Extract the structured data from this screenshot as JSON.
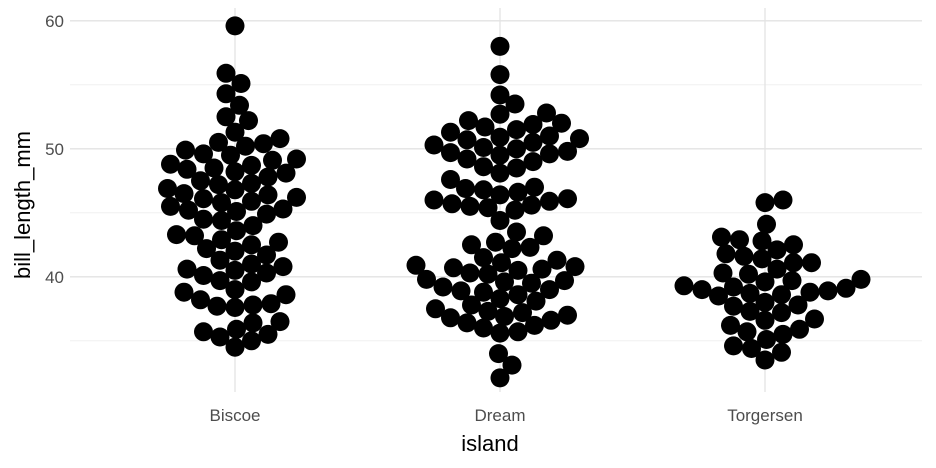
{
  "chart_data": {
    "type": "scatter",
    "style": "beeswarm",
    "title": "",
    "xlabel": "island",
    "ylabel": "bill_length_mm",
    "categories": [
      "Biscoe",
      "Dream",
      "Torgersen"
    ],
    "ylim": [
      31,
      61
    ],
    "yticks": [
      40,
      50,
      60
    ],
    "grid": true,
    "legend": "none",
    "point_color": "#000000",
    "series": [
      {
        "category": "Biscoe",
        "values": [
          59.6,
          55.9,
          55.1,
          54.3,
          53.4,
          52.5,
          52.2,
          51.3,
          50.8,
          50.5,
          50.4,
          50.2,
          49.9,
          49.6,
          49.5,
          49.2,
          49.1,
          48.8,
          48.7,
          48.5,
          48.4,
          48.2,
          48.1,
          47.8,
          47.5,
          47.3,
          47.2,
          46.9,
          46.8,
          46.5,
          46.4,
          46.2,
          46.1,
          45.9,
          45.8,
          45.5,
          45.3,
          45.2,
          45.1,
          44.9,
          44.5,
          44.4,
          44.0,
          43.6,
          43.3,
          43.2,
          42.9,
          42.7,
          42.5,
          42.2,
          42.0,
          41.7,
          41.3,
          41.0,
          40.8,
          40.6,
          40.5,
          40.3,
          40.1,
          39.7,
          39.6,
          39.0,
          38.8,
          38.6,
          38.2,
          37.9,
          37.8,
          37.7,
          37.6,
          36.5,
          36.4,
          35.9,
          35.7,
          35.5,
          35.3,
          35.0,
          34.5
        ]
      },
      {
        "category": "Dream",
        "values": [
          58.0,
          55.8,
          54.2,
          53.5,
          52.8,
          52.7,
          52.2,
          52.0,
          51.9,
          51.7,
          51.5,
          51.3,
          51.0,
          50.9,
          50.8,
          50.7,
          50.5,
          50.3,
          50.1,
          50.0,
          49.8,
          49.7,
          49.6,
          49.5,
          49.2,
          49.0,
          48.6,
          48.5,
          48.1,
          47.6,
          47.0,
          46.9,
          46.8,
          46.6,
          46.4,
          46.1,
          46.0,
          45.9,
          45.7,
          45.6,
          45.5,
          45.4,
          45.2,
          44.4,
          43.5,
          43.2,
          42.7,
          42.5,
          42.3,
          42.2,
          41.5,
          41.3,
          41.1,
          40.9,
          40.8,
          40.7,
          40.6,
          40.5,
          40.3,
          40.2,
          39.8,
          39.7,
          39.6,
          39.5,
          39.2,
          39.0,
          38.9,
          38.8,
          38.6,
          38.3,
          38.1,
          37.8,
          37.5,
          37.3,
          37.2,
          37.0,
          36.9,
          36.8,
          36.6,
          36.4,
          36.2,
          36.0,
          35.7,
          35.6,
          34.0,
          33.1,
          32.1
        ]
      },
      {
        "category": "Torgersen",
        "values": [
          46.0,
          45.8,
          44.1,
          43.1,
          42.9,
          42.8,
          42.5,
          42.1,
          41.8,
          41.6,
          41.4,
          41.1,
          41.1,
          40.6,
          40.3,
          40.2,
          39.8,
          39.7,
          39.6,
          39.3,
          39.2,
          39.1,
          39.0,
          38.9,
          38.8,
          38.7,
          38.6,
          38.5,
          38.0,
          37.8,
          37.7,
          37.3,
          37.2,
          36.7,
          36.6,
          36.2,
          35.9,
          35.7,
          35.5,
          35.1,
          34.6,
          34.4,
          34.1,
          33.5
        ]
      }
    ]
  }
}
